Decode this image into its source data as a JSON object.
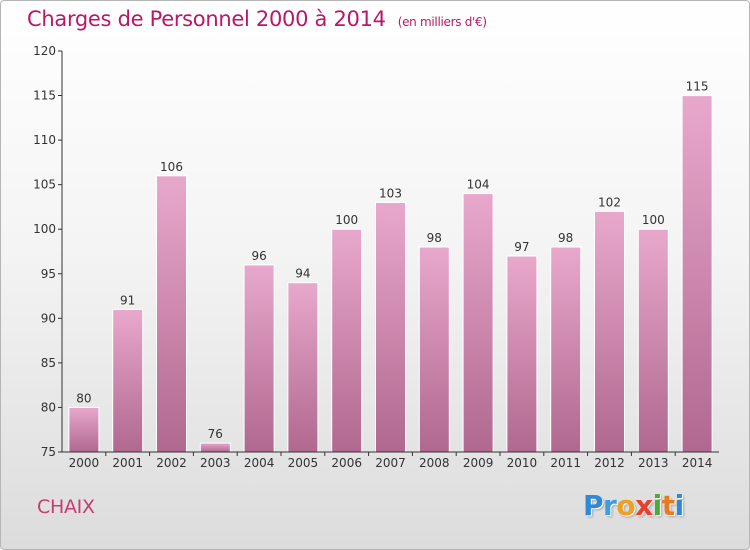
{
  "title": "Charges de Personnel 2000 à 2014",
  "subtitle": "(en milliers d'€)",
  "commune": "CHAIX",
  "logo": [
    "P",
    "r",
    "o",
    "x",
    "i",
    "t",
    "i"
  ],
  "colors": {
    "title": "#b81868",
    "bar_light": "#e8a8cc",
    "bar_dark": "#b0688f",
    "axis": "#333333"
  },
  "chart_data": {
    "type": "bar",
    "categories": [
      "2000",
      "2001",
      "2002",
      "2003",
      "2004",
      "2005",
      "2006",
      "2007",
      "2008",
      "2009",
      "2010",
      "2011",
      "2012",
      "2013",
      "2014"
    ],
    "values": [
      80,
      91,
      106,
      76,
      96,
      94,
      100,
      103,
      98,
      104,
      97,
      98,
      102,
      100,
      115
    ],
    "ylim": [
      75,
      120
    ],
    "yticks": [
      75,
      80,
      85,
      90,
      95,
      100,
      105,
      110,
      115,
      120
    ],
    "grid": false,
    "data_labels": true
  }
}
